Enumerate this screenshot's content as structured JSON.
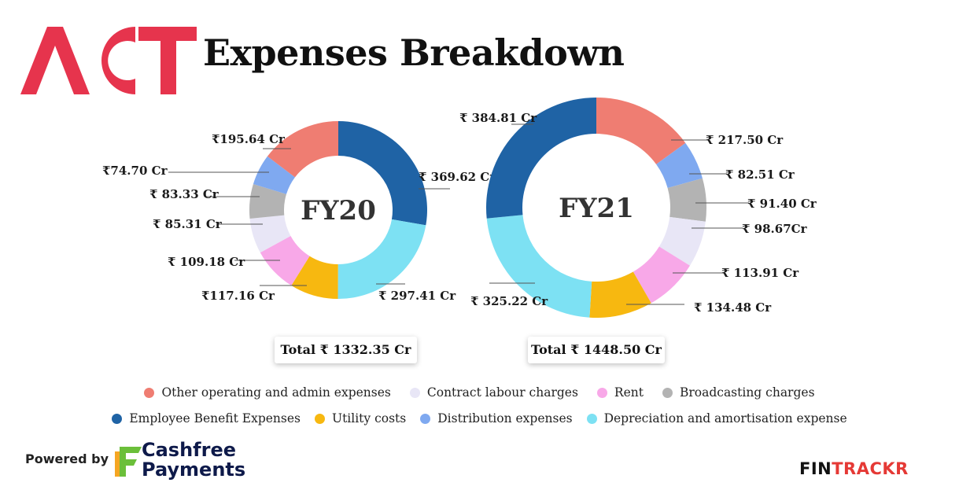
{
  "header": {
    "logo_text": "ACT",
    "title": "Expenses Breakdown"
  },
  "colors": {
    "logo": "#e6344d",
    "other": "#ef7d72",
    "contract": "#e8e6f6",
    "rent": "#f8a8e8",
    "broadcasting": "#b3b3b3",
    "employee": "#1f63a5",
    "utility": "#f7b810",
    "distribution": "#7fa9f0",
    "depreciation": "#7de1f3"
  },
  "chart_data": [
    {
      "type": "pie",
      "title": "FY20",
      "total_label": "Total ₹ 1332.35 Cr",
      "categories": [
        "Employee Benefit Expenses",
        "Depreciation and amortisation expense",
        "Utility costs",
        "Rent",
        "Contract labour charges",
        "Broadcasting charges",
        "Distribution expenses",
        "Other operating and admin expenses"
      ],
      "values": [
        369.62,
        297.41,
        117.16,
        109.18,
        85.31,
        83.33,
        74.7,
        195.64
      ],
      "labels": [
        "₹ 369.62 Cr",
        "₹ 297.41 Cr",
        "₹117.16 Cr",
        "₹ 109.18 Cr",
        "₹ 85.31 Cr",
        "₹ 83.33 Cr",
        "₹74.70 Cr",
        "₹195.64 Cr"
      ]
    },
    {
      "type": "pie",
      "title": "FY21",
      "total_label": "Total ₹ 1448.50 Cr",
      "categories": [
        "Other operating and admin expenses",
        "Distribution expenses",
        "Broadcasting charges",
        "Contract labour charges",
        "Rent",
        "Utility costs",
        "Depreciation and amortisation expense",
        "Employee Benefit Expenses"
      ],
      "values": [
        217.5,
        82.51,
        91.4,
        98.67,
        113.91,
        134.48,
        325.22,
        384.81
      ],
      "labels": [
        "₹ 217.50 Cr",
        "₹ 82.51 Cr",
        "₹ 91.40 Cr",
        "₹ 98.67Cr",
        "₹ 113.91 Cr",
        "₹ 134.48 Cr",
        "₹ 325.22 Cr",
        "₹ 384.81 Cr"
      ]
    }
  ],
  "legend": {
    "row1": [
      {
        "label": "Other operating and admin expenses",
        "color": "#ef7d72"
      },
      {
        "label": "Contract labour charges",
        "color": "#e8e6f6"
      },
      {
        "label": "Rent",
        "color": "#f8a8e8"
      },
      {
        "label": "Broadcasting charges",
        "color": "#b3b3b3"
      }
    ],
    "row2": [
      {
        "label": "Employee Benefit Expenses",
        "color": "#1f63a5"
      },
      {
        "label": "Utility costs",
        "color": "#f7b810"
      },
      {
        "label": "Distribution expenses",
        "color": "#7fa9f0"
      },
      {
        "label": "Depreciation and amortisation expense",
        "color": "#7de1f3"
      }
    ]
  },
  "footer": {
    "powered_by": "Powered by",
    "brand_line1": "Cashfree",
    "brand_line2": "Payments",
    "fintrackr_part1": "FIN",
    "fintrackr_part2": "TRACKR"
  }
}
